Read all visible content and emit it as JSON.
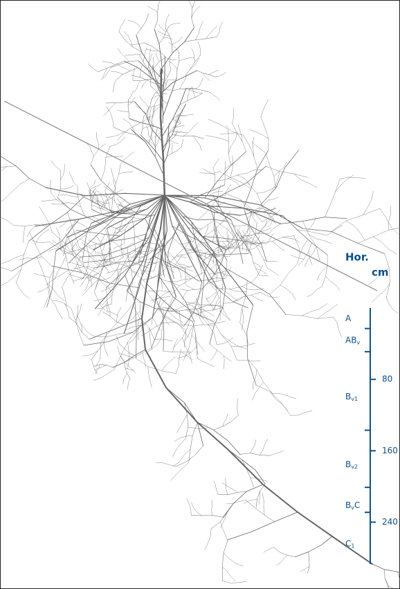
{
  "header": {
    "horizon": "Hor.",
    "unit": "cm"
  },
  "scale": {
    "ylim": [
      0,
      287
    ],
    "yticks": [
      80,
      160,
      240
    ],
    "horizon_boundaries": [
      23,
      49,
      137,
      201,
      229
    ]
  },
  "horizons": [
    {
      "text": "A"
    },
    {
      "text": "AB",
      "sub": "v"
    },
    {
      "text": "B",
      "sub": "v1"
    },
    {
      "text": "B",
      "sub": "v2"
    },
    {
      "text": "B",
      "sub": "v",
      "after": "C"
    },
    {
      "text": "C",
      "sub": "1"
    }
  ]
}
